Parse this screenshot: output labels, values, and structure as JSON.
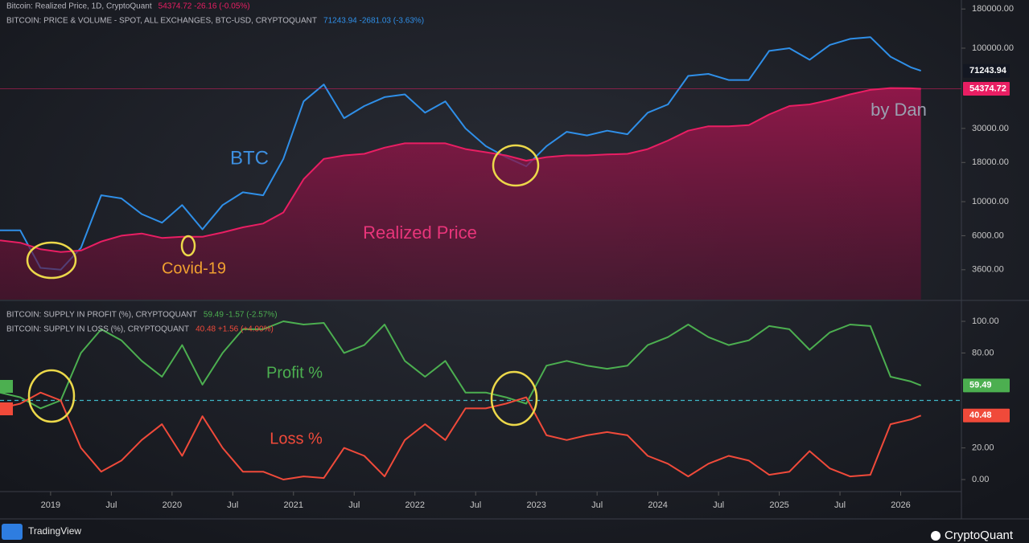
{
  "chart_data": [
    {
      "type": "line",
      "log_scale": true,
      "x": [
        "2018-08",
        "2018-10",
        "2018-12",
        "2019-02",
        "2019-04",
        "2019-06",
        "2019-08",
        "2019-10",
        "2019-12",
        "2020-02",
        "2020-04",
        "2020-06",
        "2020-08",
        "2020-10",
        "2020-12",
        "2021-02",
        "2021-04",
        "2021-06",
        "2021-08",
        "2021-10",
        "2021-12",
        "2022-02",
        "2022-04",
        "2022-06",
        "2022-08",
        "2022-10",
        "2022-12",
        "2023-02",
        "2023-04",
        "2023-06",
        "2023-08",
        "2023-10",
        "2023-12",
        "2024-02",
        "2024-04",
        "2024-06",
        "2024-08",
        "2024-10",
        "2024-12",
        "2025-02",
        "2025-04",
        "2025-06",
        "2025-08",
        "2025-10",
        "2025-12",
        "2026-02",
        "2026-03"
      ],
      "xlim": [
        "2018-08",
        "2026-07"
      ],
      "ylim": [
        2300,
        206000
      ],
      "yticks": [
        {
          "value": 180000,
          "label": "180000.00"
        },
        {
          "value": 100000,
          "label": "100000.00"
        },
        {
          "value": 30000,
          "label": "30000.00"
        },
        {
          "value": 18000,
          "label": "18000.00"
        },
        {
          "value": 10000,
          "label": "10000.00"
        },
        {
          "value": 6000,
          "label": "6000.00"
        },
        {
          "value": 3600,
          "label": "3600.00"
        }
      ],
      "series": [
        {
          "name": "BITCOIN: PRICE & VOLUME - SPOT, ALL EXCHANGES, BTC-USD, CRYPTOQUANT",
          "status": "71243.94  -2681.03 (-3.63%)",
          "color": "#2f8fe8",
          "values": [
            6500,
            6500,
            3700,
            3600,
            5000,
            11000,
            10500,
            8300,
            7300,
            9500,
            6600,
            9500,
            11500,
            11000,
            19000,
            45000,
            58000,
            35000,
            42000,
            48000,
            50000,
            38000,
            45000,
            30000,
            23000,
            19500,
            17000,
            23000,
            28500,
            27000,
            29000,
            27500,
            38000,
            43000,
            66000,
            68000,
            62000,
            62000,
            96000,
            100000,
            84000,
            105000,
            115000,
            118000,
            88000,
            75000,
            71243.94
          ]
        },
        {
          "name": "Bitcoin: Realized Price, 1D, CryptoQuant",
          "status": "54374.72  -26.16 (-0.05%)",
          "color": "#e91e63",
          "fill": true,
          "values": [
            5600,
            5400,
            4900,
            4700,
            4800,
            5500,
            6000,
            6200,
            5800,
            5900,
            5900,
            6300,
            6800,
            7200,
            8500,
            14000,
            19000,
            20000,
            20500,
            22500,
            24000,
            24000,
            24000,
            22000,
            21000,
            20000,
            18500,
            19500,
            20000,
            20000,
            20300,
            20500,
            22000,
            25000,
            29000,
            31000,
            31000,
            31500,
            37000,
            42000,
            43000,
            46000,
            50000,
            53500,
            55000,
            54800,
            54374.72
          ]
        }
      ],
      "annotations": [
        {
          "text": "BTC",
          "color": "#3d8fe0"
        },
        {
          "text": "Realized Price",
          "color": "#e8357a"
        },
        {
          "text": "Covid-19",
          "color": "#f0a030"
        },
        {
          "text": "by Dan",
          "color": "#9aa0b0"
        }
      ]
    },
    {
      "type": "line",
      "x": [
        "2018-08",
        "2018-10",
        "2018-12",
        "2019-02",
        "2019-04",
        "2019-06",
        "2019-08",
        "2019-10",
        "2019-12",
        "2020-02",
        "2020-04",
        "2020-06",
        "2020-08",
        "2020-10",
        "2020-12",
        "2021-02",
        "2021-04",
        "2021-06",
        "2021-08",
        "2021-10",
        "2021-12",
        "2022-02",
        "2022-04",
        "2022-06",
        "2022-08",
        "2022-10",
        "2022-12",
        "2023-02",
        "2023-04",
        "2023-06",
        "2023-08",
        "2023-10",
        "2023-12",
        "2024-02",
        "2024-04",
        "2024-06",
        "2024-08",
        "2024-10",
        "2024-12",
        "2025-02",
        "2025-04",
        "2025-06",
        "2025-08",
        "2025-10",
        "2025-12",
        "2026-02",
        "2026-03"
      ],
      "xlim": [
        "2018-08",
        "2026-07"
      ],
      "xticks": [
        {
          "value": "2019-01",
          "label": "2019"
        },
        {
          "value": "2019-07",
          "label": "Jul"
        },
        {
          "value": "2020-01",
          "label": "2020"
        },
        {
          "value": "2020-07",
          "label": "Jul"
        },
        {
          "value": "2021-01",
          "label": "2021"
        },
        {
          "value": "2021-07",
          "label": "Jul"
        },
        {
          "value": "2022-01",
          "label": "2022"
        },
        {
          "value": "2022-07",
          "label": "Jul"
        },
        {
          "value": "2023-01",
          "label": "2023"
        },
        {
          "value": "2023-07",
          "label": "Jul"
        },
        {
          "value": "2024-01",
          "label": "2024"
        },
        {
          "value": "2024-07",
          "label": "Jul"
        },
        {
          "value": "2025-01",
          "label": "2025"
        },
        {
          "value": "2025-07",
          "label": "Jul"
        },
        {
          "value": "2026-01",
          "label": "2026"
        }
      ],
      "ylim": [
        -7.6,
        112.7
      ],
      "yticks": [
        {
          "value": 100,
          "label": "100.00"
        },
        {
          "value": 80,
          "label": "80.00"
        },
        {
          "value": 20,
          "label": "20.00"
        },
        {
          "value": 0,
          "label": "0.00"
        }
      ],
      "reference_line": 50,
      "series": [
        {
          "name": "BITCOIN: SUPPLY IN PROFIT (%), CRYPTOQUANT",
          "status": "59.49  -1.57 (-2.57%)",
          "color": "#4caf50",
          "values": [
            55,
            52,
            45,
            50,
            80,
            95,
            88,
            75,
            65,
            85,
            60,
            80,
            95,
            95,
            100,
            98,
            99,
            80,
            85,
            98,
            75,
            65,
            75,
            55,
            55,
            52,
            48,
            72,
            75,
            72,
            70,
            72,
            85,
            90,
            98,
            90,
            85,
            88,
            97,
            95,
            82,
            93,
            98,
            97,
            65,
            62,
            59.49
          ]
        },
        {
          "name": "BITCOIN: SUPPLY IN LOSS (%), CRYPTOQUANT",
          "status": "40.48  +1.56 (+4.00%)",
          "color": "#f04a3a",
          "values": [
            45,
            48,
            55,
            50,
            20,
            5,
            12,
            25,
            35,
            15,
            40,
            20,
            5,
            5,
            0,
            2,
            1,
            20,
            15,
            2,
            25,
            35,
            25,
            45,
            45,
            48,
            52,
            28,
            25,
            28,
            30,
            28,
            15,
            10,
            2,
            10,
            15,
            12,
            3,
            5,
            18,
            7,
            2,
            3,
            35,
            38,
            40.48
          ]
        }
      ],
      "annotations": [
        {
          "text": "Profit %",
          "color": "#4caf50"
        },
        {
          "text": "Loss %",
          "color": "#f04a3a"
        }
      ]
    }
  ],
  "footer": {
    "left": "TradingView",
    "right": "CryptoQuant"
  }
}
